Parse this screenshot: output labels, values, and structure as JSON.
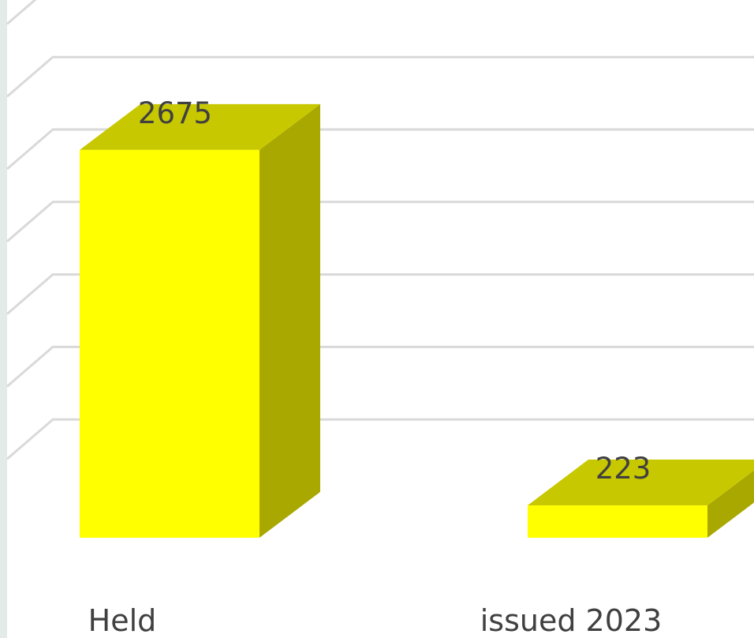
{
  "chart_data": {
    "type": "bar",
    "style": "3d-column",
    "categories": [
      "Held",
      "issued 2023"
    ],
    "values": [
      2675,
      223
    ],
    "data_labels": [
      "2675",
      "223"
    ],
    "ylim": [
      0,
      3500
    ],
    "grid": true,
    "legend": "none",
    "colors": {
      "bar_front": "#ffff00",
      "bar_top": "#c8c800",
      "bar_side": "#a8a800",
      "grid": "#d9d9d9",
      "text": "#404040",
      "left_strip": "#e2ebe8"
    }
  }
}
